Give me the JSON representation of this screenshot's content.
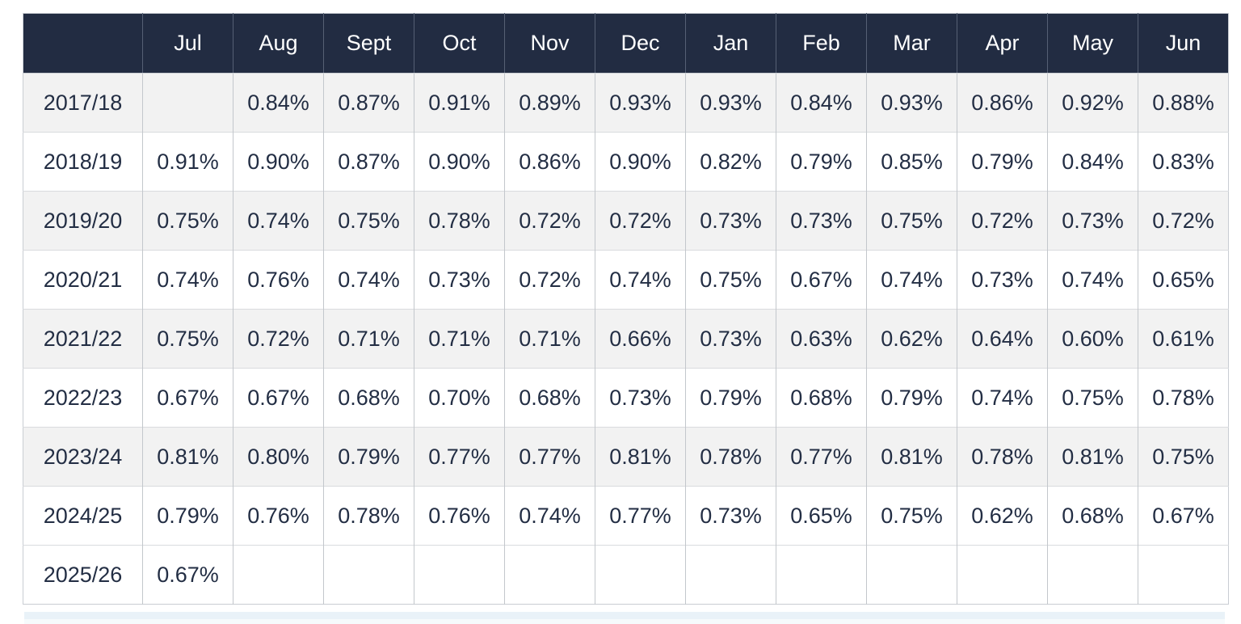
{
  "chart_data": {
    "type": "table",
    "columns": [
      "",
      "Jul",
      "Aug",
      "Sept",
      "Oct",
      "Nov",
      "Dec",
      "Jan",
      "Feb",
      "Mar",
      "Apr",
      "May",
      "Jun"
    ],
    "rows": [
      {
        "label": "2017/18",
        "shaded": true,
        "values": [
          "",
          "0.84%",
          "0.87%",
          "0.91%",
          "0.89%",
          "0.93%",
          "0.93%",
          "0.84%",
          "0.93%",
          "0.86%",
          "0.92%",
          "0.88%"
        ]
      },
      {
        "label": "2018/19",
        "shaded": false,
        "values": [
          "0.91%",
          "0.90%",
          "0.87%",
          "0.90%",
          "0.86%",
          "0.90%",
          "0.82%",
          "0.79%",
          "0.85%",
          "0.79%",
          "0.84%",
          "0.83%"
        ]
      },
      {
        "label": "2019/20",
        "shaded": true,
        "values": [
          "0.75%",
          "0.74%",
          "0.75%",
          "0.78%",
          "0.72%",
          "0.72%",
          "0.73%",
          "0.73%",
          "0.75%",
          "0.72%",
          "0.73%",
          "0.72%"
        ]
      },
      {
        "label": "2020/21",
        "shaded": false,
        "values": [
          "0.74%",
          "0.76%",
          "0.74%",
          "0.73%",
          "0.72%",
          "0.74%",
          "0.75%",
          "0.67%",
          "0.74%",
          "0.73%",
          "0.74%",
          "0.65%"
        ]
      },
      {
        "label": "2021/22",
        "shaded": true,
        "values": [
          "0.75%",
          "0.72%",
          "0.71%",
          "0.71%",
          "0.71%",
          "0.66%",
          "0.73%",
          "0.63%",
          "0.62%",
          "0.64%",
          "0.60%",
          "0.61%"
        ]
      },
      {
        "label": "2022/23",
        "shaded": false,
        "values": [
          "0.67%",
          "0.67%",
          "0.68%",
          "0.70%",
          "0.68%",
          "0.73%",
          "0.79%",
          "0.68%",
          "0.79%",
          "0.74%",
          "0.75%",
          "0.78%"
        ]
      },
      {
        "label": "2023/24",
        "shaded": true,
        "values": [
          "0.81%",
          "0.80%",
          "0.79%",
          "0.77%",
          "0.77%",
          "0.81%",
          "0.78%",
          "0.77%",
          "0.81%",
          "0.78%",
          "0.81%",
          "0.75%"
        ]
      },
      {
        "label": "2024/25",
        "shaded": false,
        "values": [
          "0.79%",
          "0.76%",
          "0.78%",
          "0.76%",
          "0.74%",
          "0.77%",
          "0.73%",
          "0.65%",
          "0.75%",
          "0.62%",
          "0.68%",
          "0.67%"
        ]
      },
      {
        "label": "2025/26",
        "shaded": false,
        "values": [
          "0.67%",
          "",
          "",
          "",
          "",
          "",
          "",
          "",
          "",
          "",
          "",
          ""
        ]
      }
    ],
    "title": "",
    "layout": {
      "grid": true,
      "striped": true,
      "header_position": "top"
    }
  },
  "colors": {
    "header_bg": "#222c42",
    "header_text": "#ffffff",
    "body_text": "#232e44",
    "stripe_bg": "#f2f2f2",
    "row_bg": "#ffffff",
    "border": "#c9cdd3",
    "footer_strip": "#e9f2f8"
  }
}
